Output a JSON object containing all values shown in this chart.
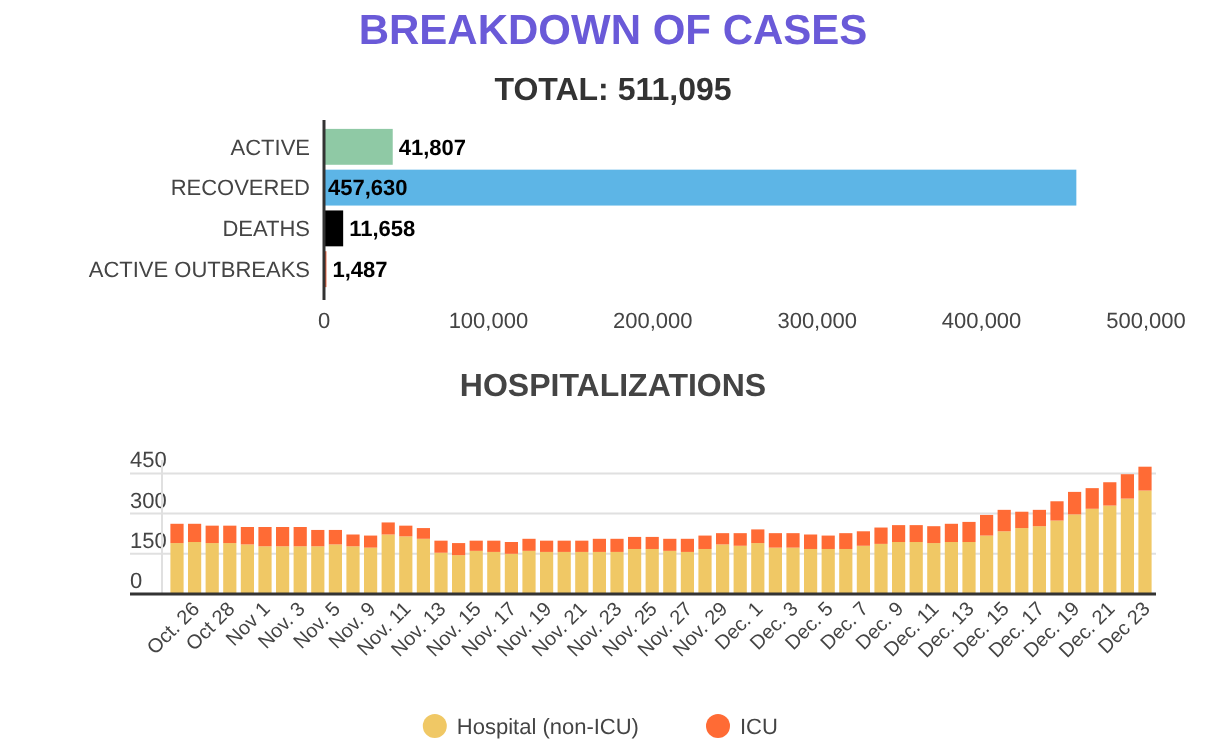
{
  "chart_data": [
    {
      "type": "bar",
      "title": "BREAKDOWN OF CASES",
      "subtitle": "TOTAL: 511,095",
      "orientation": "horizontal",
      "categories": [
        "ACTIVE",
        "RECOVERED",
        "DEATHS",
        "ACTIVE OUTBREAKS"
      ],
      "values": [
        41807,
        457630,
        11658,
        1487
      ],
      "colors": [
        "#8fc9a5",
        "#5db5e6",
        "#000000",
        "#e8603c"
      ],
      "xlim": [
        0,
        500000
      ],
      "xticks": [
        0,
        {
          "value": 100000,
          "label": "100,000"
        },
        {
          "value": 200000,
          "label": "200,000"
        },
        {
          "value": 300000,
          "label": "300,000"
        },
        {
          "value": 400000,
          "label": "400,000"
        },
        {
          "value": 500000,
          "label": "500,000"
        }
      ],
      "value_labels": [
        "41,807",
        "457,630",
        "11,658",
        "1,487"
      ],
      "grid": false
    },
    {
      "type": "bar",
      "title": "HOSPITALIZATIONS",
      "stacked": true,
      "grid": "y",
      "legend": "bottom",
      "ylim": [
        0,
        500
      ],
      "yticks": [
        0,
        150,
        300,
        450
      ],
      "categories": [
        null,
        "Oct. 26",
        null,
        "Oct 28",
        null,
        "Nov 1",
        null,
        "Nov. 3",
        null,
        "Nov. 5",
        null,
        "Nov. 9",
        null,
        "Nov. 11",
        null,
        "Nov. 13",
        null,
        "Nov. 15",
        null,
        "Nov. 17",
        null,
        "Nov. 19",
        null,
        "Nov. 21",
        null,
        "Nov. 23",
        null,
        "Nov. 25",
        null,
        "Nov. 27",
        null,
        "Nov. 29",
        null,
        "Dec. 1",
        null,
        "Dec. 3",
        null,
        "Dec. 5",
        null,
        "Dec. 7",
        null,
        "Dec. 9",
        null,
        "Dec. 11",
        null,
        "Dec. 13",
        null,
        "Dec. 15",
        null,
        "Dec. 17",
        null,
        "Dec. 19",
        null,
        "Dec. 21",
        null,
        "Dec 23"
      ],
      "series": [
        {
          "name": "Hospital (non-ICU)",
          "color": "#f0c865",
          "values": [
            190,
            194,
            190,
            190,
            185,
            178,
            178,
            178,
            178,
            185,
            178,
            173,
            222,
            215,
            206,
            154,
            145,
            161,
            157,
            150,
            161,
            157,
            157,
            157,
            157,
            157,
            168,
            168,
            161,
            157,
            168,
            185,
            180,
            190,
            173,
            173,
            168,
            168,
            168,
            180,
            187,
            194,
            194,
            190,
            194,
            194,
            218,
            234,
            246,
            253,
            274,
            297,
            318,
            330,
            356,
            386
          ]
        },
        {
          "name": "ICU",
          "color": "#ff6b35",
          "values": [
            72,
            68,
            65,
            65,
            65,
            72,
            72,
            72,
            61,
            54,
            44,
            45,
            45,
            40,
            40,
            45,
            45,
            38,
            42,
            44,
            45,
            42,
            42,
            42,
            49,
            49,
            45,
            45,
            45,
            49,
            50,
            42,
            47,
            51,
            54,
            54,
            54,
            50,
            59,
            54,
            61,
            63,
            63,
            63,
            68,
            75,
            77,
            80,
            61,
            61,
            72,
            84,
            77,
            87,
            91,
            89
          ]
        }
      ]
    }
  ]
}
